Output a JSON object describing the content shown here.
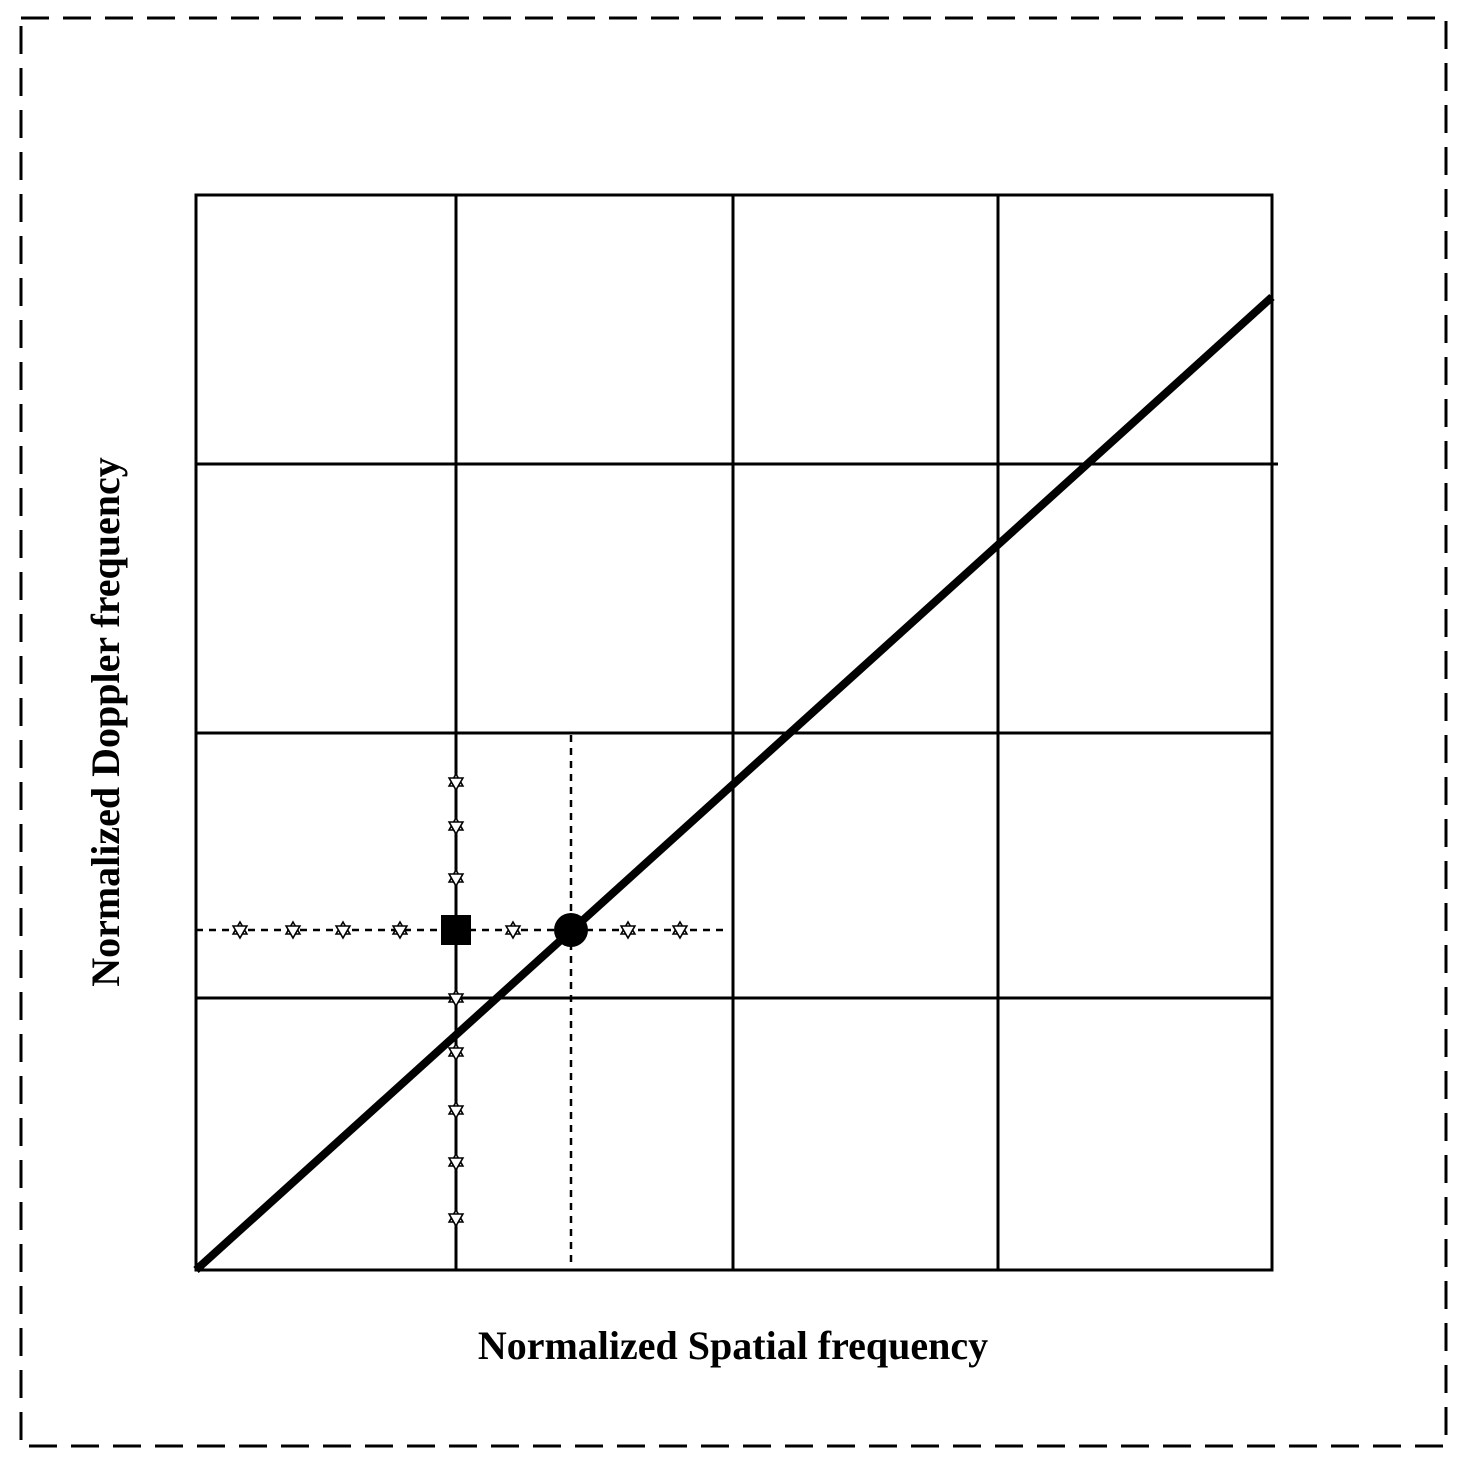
{
  "x_axis_label": "Normalized Spatial frequency",
  "y_axis_label": "Normalized Doppler frequency"
}
